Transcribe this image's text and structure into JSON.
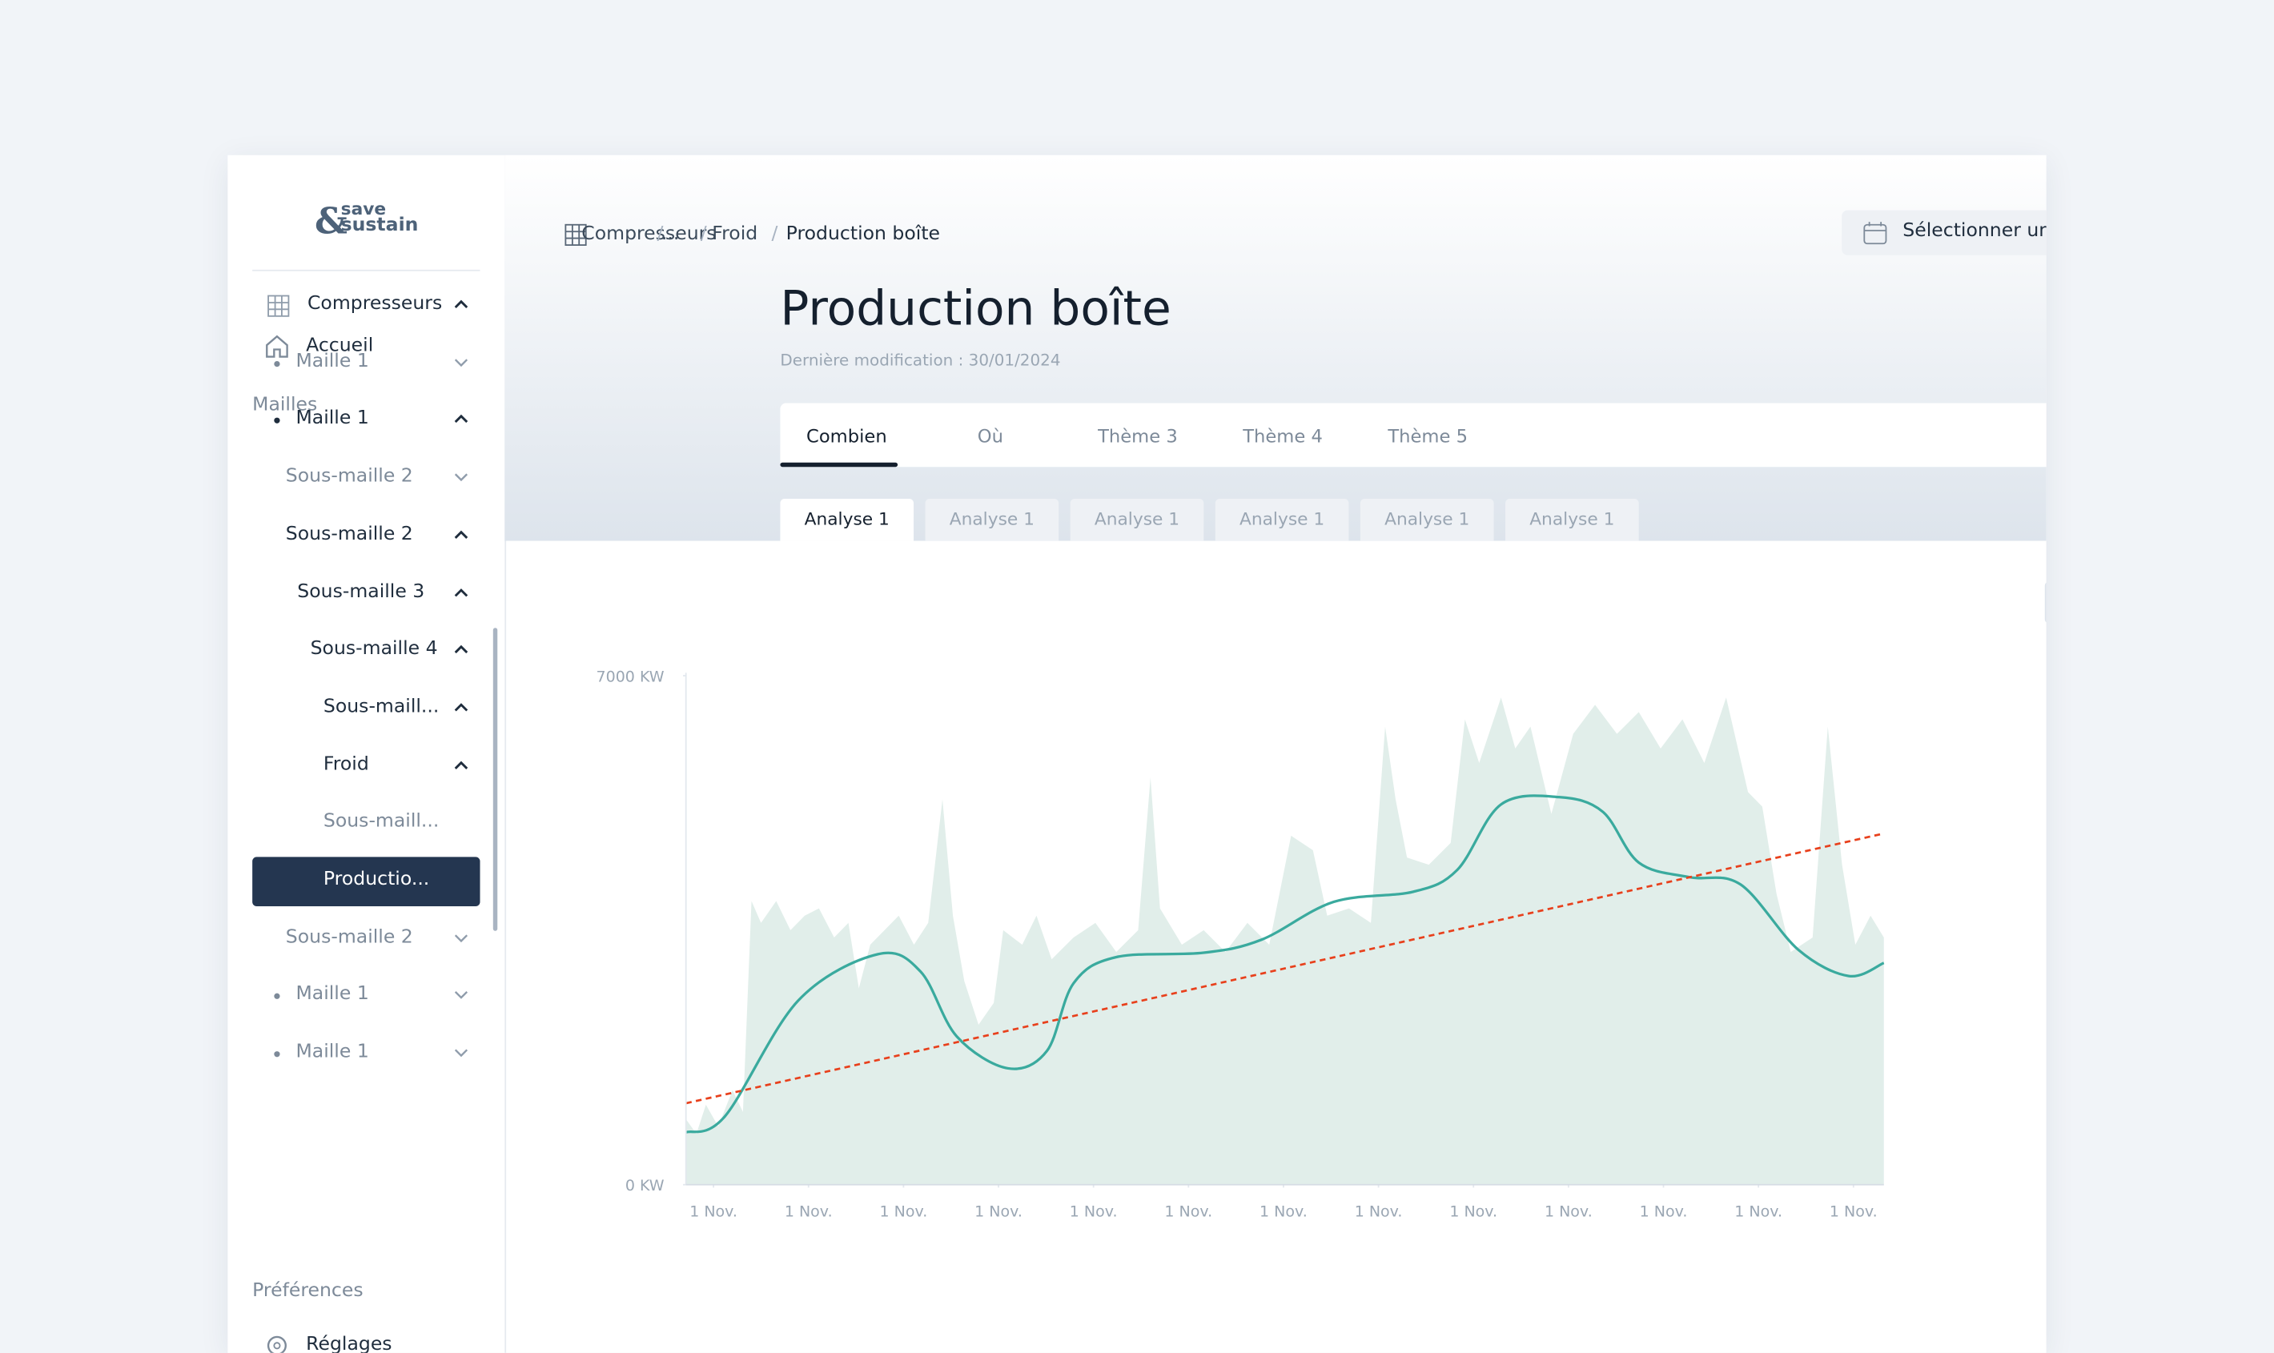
{
  "logo": {
    "amp": "&",
    "top": "save",
    "bottom": "sustain"
  },
  "sidebar": {
    "home": "Accueil",
    "section": "Mailles",
    "items": [
      "Compresseurs",
      "Maille 1",
      "Maille 1",
      "Sous-maille 2",
      "Sous-maille 2",
      "Sous-maille 3",
      "Sous-maille 4",
      "Sous-maill...",
      "Froid",
      "Sous-maill...",
      "Productio...",
      "Sous-maille 2",
      "Maille 1",
      "Maille 1"
    ],
    "prefs": "Préférences",
    "settings": "Réglages"
  },
  "breadcrumb": {
    "items": [
      "Compresseurs",
      "...",
      "Froid",
      "Production boîte"
    ],
    "separator": "/"
  },
  "period": "Sélectionner une période",
  "header": {
    "title": "Production boîte",
    "subtitle": "Dernière modification : 30/01/2024"
  },
  "tabs": [
    "Combien",
    "Où",
    "Thème 3",
    "Thème 4",
    "Thème 5"
  ],
  "subtabs": [
    "Analyse 1",
    "Analyse 1",
    "Analyse 1",
    "Analyse 1",
    "Analyse 1",
    "Analyse 1"
  ],
  "chart_data": {
    "type": "area",
    "xlim": [
      -0.29,
      12.32
    ],
    "xticks": [
      {
        "value": 0,
        "label": "1 Nov."
      },
      {
        "value": 1,
        "label": "1 Nov."
      },
      {
        "value": 2,
        "label": "1 Nov."
      },
      {
        "value": 3,
        "label": "1 Nov."
      },
      {
        "value": 4,
        "label": "1 Nov."
      },
      {
        "value": 5,
        "label": "1 Nov."
      },
      {
        "value": 6,
        "label": "1 Nov."
      },
      {
        "value": 7,
        "label": "1 Nov."
      },
      {
        "value": 8,
        "label": "1 Nov."
      },
      {
        "value": 9,
        "label": "1 Nov."
      },
      {
        "value": 10,
        "label": "1 Nov."
      },
      {
        "value": 11,
        "label": "1 Nov."
      },
      {
        "value": 12,
        "label": "1 Nov."
      }
    ],
    "ylim": [
      0,
      7000
    ],
    "yticks": [
      {
        "value": 7000,
        "label": "7000 KW"
      },
      {
        "value": 0,
        "label": "0 KW"
      }
    ],
    "series": [
      {
        "type": "area",
        "color": "#e1eeea",
        "x": [
          -0.29,
          -0.18,
          -0.08,
          0.05,
          0.2,
          0.31,
          0.4,
          0.5,
          0.66,
          0.81,
          0.96,
          1.11,
          1.27,
          1.42,
          1.53,
          1.65,
          1.8,
          1.95,
          2.11,
          2.26,
          2.41,
          2.52,
          2.64,
          2.79,
          2.95,
          3.05,
          3.25,
          3.4,
          3.56,
          3.79,
          4.02,
          4.24,
          4.47,
          4.6,
          4.7,
          4.93,
          5.16,
          5.39,
          5.62,
          5.85,
          6.08,
          6.31,
          6.46,
          6.69,
          6.92,
          7.07,
          7.18,
          7.3,
          7.53,
          7.76,
          7.91,
          8.06,
          8.29,
          8.44,
          8.6,
          8.82,
          9.05,
          9.28,
          9.51,
          9.74,
          9.97,
          10.2,
          10.43,
          10.66,
          10.89,
          11.04,
          11.19,
          11.34,
          11.57,
          11.73,
          11.88,
          12.02,
          12.18,
          12.32
        ],
        "values": [
          900,
          700,
          1100,
          800,
          1300,
          1000,
          3900,
          3600,
          3900,
          3500,
          3700,
          3800,
          3400,
          3600,
          2700,
          3300,
          3500,
          3700,
          3300,
          3600,
          5300,
          3700,
          2800,
          2200,
          2500,
          3500,
          3300,
          3700,
          3100,
          3400,
          3600,
          3200,
          3500,
          5600,
          3800,
          3300,
          3500,
          3200,
          3600,
          3300,
          4800,
          4600,
          3700,
          3800,
          3600,
          6300,
          5300,
          4500,
          4400,
          4700,
          6400,
          5800,
          6700,
          6000,
          6300,
          5100,
          6200,
          6600,
          6200,
          6500,
          6000,
          6400,
          5800,
          6700,
          5400,
          5200,
          4000,
          3200,
          3400,
          6300,
          4400,
          3300,
          3700,
          3400
        ]
      },
      {
        "type": "line",
        "color": "#3aaa9e",
        "x": [
          -0.29,
          0.12,
          0.89,
          1.73,
          2.18,
          2.56,
          3.1,
          3.51,
          3.79,
          4.24,
          5.16,
          5.77,
          6.53,
          7.37,
          7.83,
          8.29,
          8.9,
          9.36,
          9.74,
          10.27,
          10.81,
          11.42,
          11.95,
          12.32
        ],
        "values": [
          720,
          940,
          2530,
          3170,
          2930,
          2040,
          1600,
          1840,
          2770,
          3130,
          3190,
          3370,
          3890,
          4030,
          4330,
          5230,
          5330,
          5130,
          4430,
          4230,
          4130,
          3230,
          2870,
          3050
        ]
      },
      {
        "type": "dashed",
        "color": "#e8401c",
        "x": [
          -0.29,
          12.32
        ],
        "values": [
          1120,
          4830
        ]
      }
    ]
  }
}
